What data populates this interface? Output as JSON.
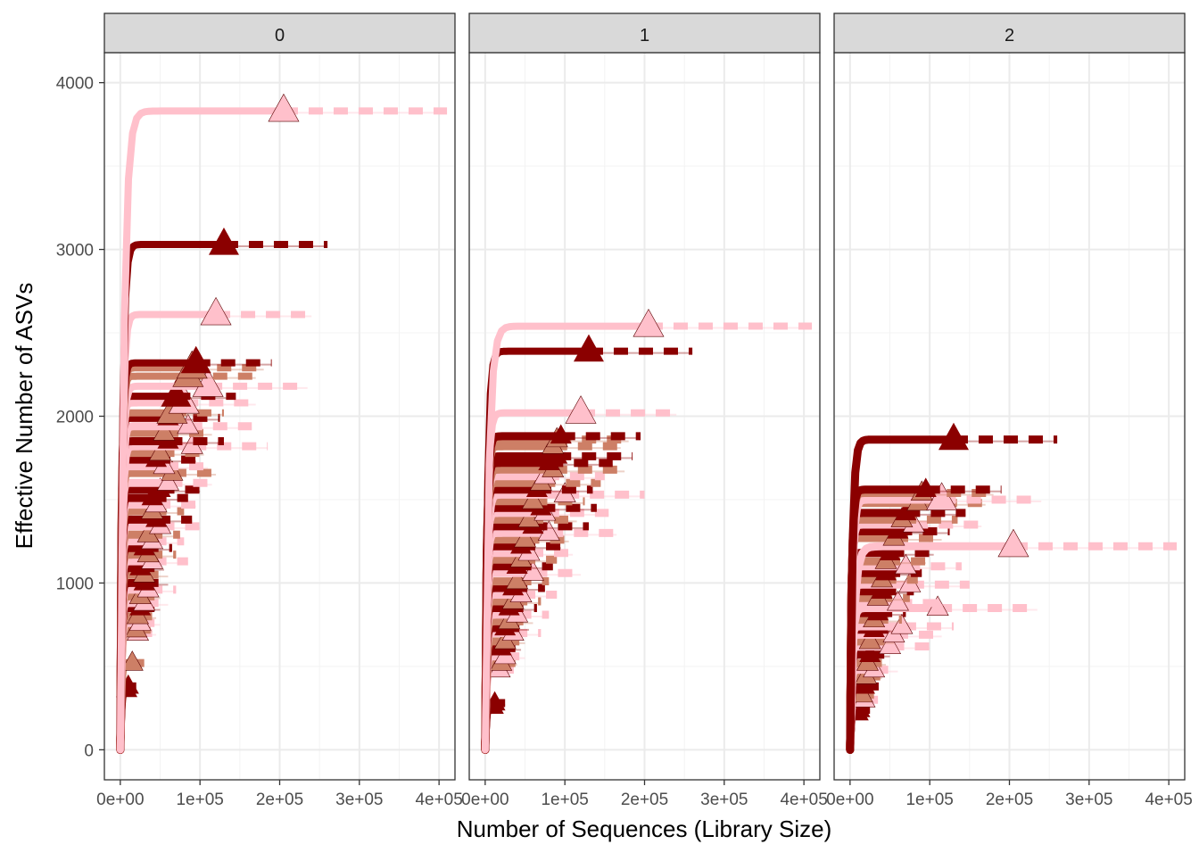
{
  "chart_data": {
    "type": "line",
    "subtype": "rarefaction-curves (faceted)",
    "xlabel": "Number of Sequences (Library Size)",
    "ylabel": "Effective Number of ASVs",
    "xlim": [
      -20000,
      420000
    ],
    "ylim": [
      -180,
      4180
    ],
    "x_ticks": [
      0,
      100000,
      200000,
      300000,
      400000
    ],
    "x_tick_labels": [
      "0e+00",
      "1e+05",
      "2e+05",
      "3e+05",
      "4e+05"
    ],
    "y_ticks": [
      0,
      1000,
      2000,
      3000,
      4000
    ],
    "y_tick_labels": [
      "0",
      "1000",
      "2000",
      "3000",
      "4000"
    ],
    "grid": true,
    "legend": "none",
    "colors": {
      "dark": "#8b0000",
      "medium": "#cd7f66",
      "light": "#ffc0cb",
      "strip_bg": "#d9d9d9",
      "grid": "#ebebeb",
      "axis_text": "#4d4d4d"
    },
    "facets": [
      {
        "label": "0",
        "series": [
          {
            "color": "light",
            "y": 3830,
            "lib": 205000,
            "ext": 410000
          },
          {
            "color": "dark",
            "y": 3030,
            "lib": 130000,
            "ext": 260000
          },
          {
            "color": "light",
            "y": 2610,
            "lib": 120000,
            "ext": 240000
          },
          {
            "color": "dark",
            "y": 2320,
            "lib": 95000,
            "ext": 190000
          },
          {
            "color": "medium",
            "y": 2290,
            "lib": 90000,
            "ext": 180000
          },
          {
            "color": "medium",
            "y": 2240,
            "lib": 85000,
            "ext": 170000
          },
          {
            "color": "light",
            "y": 2180,
            "lib": 110000,
            "ext": 235000
          },
          {
            "color": "dark",
            "y": 2120,
            "lib": 70000,
            "ext": 145000
          },
          {
            "color": "light",
            "y": 2080,
            "lib": 80000,
            "ext": 170000
          },
          {
            "color": "medium",
            "y": 2020,
            "lib": 65000,
            "ext": 130000
          },
          {
            "color": "dark",
            "y": 1990,
            "lib": 60000,
            "ext": 125000
          },
          {
            "color": "light",
            "y": 1940,
            "lib": 85000,
            "ext": 165000
          },
          {
            "color": "medium",
            "y": 1900,
            "lib": 55000,
            "ext": 115000
          },
          {
            "color": "dark",
            "y": 1850,
            "lib": 60000,
            "ext": 130000
          },
          {
            "color": "light",
            "y": 1820,
            "lib": 90000,
            "ext": 185000
          },
          {
            "color": "medium",
            "y": 1780,
            "lib": 50000,
            "ext": 105000
          },
          {
            "color": "dark",
            "y": 1740,
            "lib": 45000,
            "ext": 95000
          },
          {
            "color": "light",
            "y": 1700,
            "lib": 55000,
            "ext": 110000
          },
          {
            "color": "medium",
            "y": 1660,
            "lib": 65000,
            "ext": 120000
          },
          {
            "color": "light",
            "y": 1600,
            "lib": 60000,
            "ext": 115000
          },
          {
            "color": "dark",
            "y": 1560,
            "lib": 50000,
            "ext": 100000
          },
          {
            "color": "dark",
            "y": 1510,
            "lib": 40000,
            "ext": 85000
          },
          {
            "color": "light",
            "y": 1470,
            "lib": 45000,
            "ext": 95000
          },
          {
            "color": "medium",
            "y": 1430,
            "lib": 40000,
            "ext": 80000
          },
          {
            "color": "dark",
            "y": 1380,
            "lib": 45000,
            "ext": 90000
          },
          {
            "color": "light",
            "y": 1340,
            "lib": 50000,
            "ext": 100000
          },
          {
            "color": "medium",
            "y": 1290,
            "lib": 35000,
            "ext": 75000
          },
          {
            "color": "light",
            "y": 1250,
            "lib": 40000,
            "ext": 80000
          },
          {
            "color": "dark",
            "y": 1210,
            "lib": 30000,
            "ext": 65000
          },
          {
            "color": "medium",
            "y": 1170,
            "lib": 35000,
            "ext": 70000
          },
          {
            "color": "light",
            "y": 1130,
            "lib": 40000,
            "ext": 85000
          },
          {
            "color": "dark",
            "y": 1090,
            "lib": 25000,
            "ext": 55000
          },
          {
            "color": "medium",
            "y": 1050,
            "lib": 30000,
            "ext": 60000
          },
          {
            "color": "dark",
            "y": 1000,
            "lib": 30000,
            "ext": 60000
          },
          {
            "color": "light",
            "y": 960,
            "lib": 35000,
            "ext": 70000
          },
          {
            "color": "medium",
            "y": 920,
            "lib": 25000,
            "ext": 50000
          },
          {
            "color": "light",
            "y": 880,
            "lib": 30000,
            "ext": 60000
          },
          {
            "color": "dark",
            "y": 850,
            "lib": 25000,
            "ext": 50000
          },
          {
            "color": "medium",
            "y": 800,
            "lib": 22000,
            "ext": 45000
          },
          {
            "color": "light",
            "y": 760,
            "lib": 25000,
            "ext": 50000
          },
          {
            "color": "medium",
            "y": 720,
            "lib": 20000,
            "ext": 40000
          },
          {
            "color": "light",
            "y": 700,
            "lib": 22000,
            "ext": 45000
          },
          {
            "color": "medium",
            "y": 520,
            "lib": 15000,
            "ext": 30000
          },
          {
            "color": "dark",
            "y": 380,
            "lib": 10000,
            "ext": 20000
          },
          {
            "color": "dark",
            "y": 360,
            "lib": 8000,
            "ext": 18000
          }
        ]
      },
      {
        "label": "1",
        "series": [
          {
            "color": "light",
            "y": 2540,
            "lib": 205000,
            "ext": 410000
          },
          {
            "color": "dark",
            "y": 2390,
            "lib": 130000,
            "ext": 260000
          },
          {
            "color": "light",
            "y": 2020,
            "lib": 120000,
            "ext": 240000
          },
          {
            "color": "dark",
            "y": 1880,
            "lib": 95000,
            "ext": 195000
          },
          {
            "color": "medium",
            "y": 1860,
            "lib": 90000,
            "ext": 180000
          },
          {
            "color": "medium",
            "y": 1820,
            "lib": 85000,
            "ext": 170000
          },
          {
            "color": "dark",
            "y": 1760,
            "lib": 90000,
            "ext": 185000
          },
          {
            "color": "dark",
            "y": 1720,
            "lib": 80000,
            "ext": 160000
          },
          {
            "color": "medium",
            "y": 1680,
            "lib": 85000,
            "ext": 175000
          },
          {
            "color": "light",
            "y": 1640,
            "lib": 75000,
            "ext": 150000
          },
          {
            "color": "medium",
            "y": 1600,
            "lib": 70000,
            "ext": 145000
          },
          {
            "color": "dark",
            "y": 1560,
            "lib": 65000,
            "ext": 135000
          },
          {
            "color": "light",
            "y": 1530,
            "lib": 100000,
            "ext": 200000
          },
          {
            "color": "medium",
            "y": 1490,
            "lib": 60000,
            "ext": 125000
          },
          {
            "color": "dark",
            "y": 1450,
            "lib": 70000,
            "ext": 140000
          },
          {
            "color": "light",
            "y": 1420,
            "lib": 75000,
            "ext": 155000
          },
          {
            "color": "medium",
            "y": 1380,
            "lib": 55000,
            "ext": 115000
          },
          {
            "color": "dark",
            "y": 1340,
            "lib": 60000,
            "ext": 130000
          },
          {
            "color": "light",
            "y": 1300,
            "lib": 80000,
            "ext": 165000
          },
          {
            "color": "medium",
            "y": 1260,
            "lib": 50000,
            "ext": 105000
          },
          {
            "color": "dark",
            "y": 1220,
            "lib": 45000,
            "ext": 95000
          },
          {
            "color": "light",
            "y": 1180,
            "lib": 55000,
            "ext": 110000
          },
          {
            "color": "medium",
            "y": 1140,
            "lib": 45000,
            "ext": 90000
          },
          {
            "color": "dark",
            "y": 1100,
            "lib": 40000,
            "ext": 85000
          },
          {
            "color": "light",
            "y": 1060,
            "lib": 60000,
            "ext": 120000
          },
          {
            "color": "medium",
            "y": 1010,
            "lib": 40000,
            "ext": 80000
          },
          {
            "color": "dark",
            "y": 970,
            "lib": 35000,
            "ext": 75000
          },
          {
            "color": "light",
            "y": 930,
            "lib": 45000,
            "ext": 90000
          },
          {
            "color": "medium",
            "y": 890,
            "lib": 35000,
            "ext": 70000
          },
          {
            "color": "dark",
            "y": 850,
            "lib": 30000,
            "ext": 65000
          },
          {
            "color": "light",
            "y": 810,
            "lib": 40000,
            "ext": 80000
          },
          {
            "color": "medium",
            "y": 770,
            "lib": 30000,
            "ext": 60000
          },
          {
            "color": "dark",
            "y": 730,
            "lib": 25000,
            "ext": 55000
          },
          {
            "color": "light",
            "y": 700,
            "lib": 35000,
            "ext": 70000
          },
          {
            "color": "medium",
            "y": 650,
            "lib": 25000,
            "ext": 50000
          },
          {
            "color": "dark",
            "y": 610,
            "lib": 20000,
            "ext": 45000
          },
          {
            "color": "light",
            "y": 560,
            "lib": 25000,
            "ext": 50000
          },
          {
            "color": "medium",
            "y": 520,
            "lib": 20000,
            "ext": 40000
          },
          {
            "color": "light",
            "y": 480,
            "lib": 18000,
            "ext": 36000
          },
          {
            "color": "dark",
            "y": 280,
            "lib": 12000,
            "ext": 25000
          },
          {
            "color": "dark",
            "y": 260,
            "lib": 10000,
            "ext": 22000
          }
        ]
      },
      {
        "label": "2",
        "series": [
          {
            "color": "dark",
            "y": 1860,
            "lib": 130000,
            "ext": 260000
          },
          {
            "color": "dark",
            "y": 1560,
            "lib": 95000,
            "ext": 190000
          },
          {
            "color": "medium",
            "y": 1540,
            "lib": 90000,
            "ext": 180000
          },
          {
            "color": "light",
            "y": 1500,
            "lib": 115000,
            "ext": 240000
          },
          {
            "color": "medium",
            "y": 1480,
            "lib": 85000,
            "ext": 170000
          },
          {
            "color": "dark",
            "y": 1420,
            "lib": 70000,
            "ext": 145000
          },
          {
            "color": "medium",
            "y": 1380,
            "lib": 65000,
            "ext": 135000
          },
          {
            "color": "light",
            "y": 1350,
            "lib": 80000,
            "ext": 165000
          },
          {
            "color": "dark",
            "y": 1310,
            "lib": 60000,
            "ext": 125000
          },
          {
            "color": "medium",
            "y": 1270,
            "lib": 55000,
            "ext": 115000
          },
          {
            "color": "light",
            "y": 1220,
            "lib": 205000,
            "ext": 410000
          },
          {
            "color": "dark",
            "y": 1180,
            "lib": 50000,
            "ext": 105000
          },
          {
            "color": "medium",
            "y": 1130,
            "lib": 45000,
            "ext": 95000
          },
          {
            "color": "light",
            "y": 1100,
            "lib": 70000,
            "ext": 140000
          },
          {
            "color": "dark",
            "y": 1060,
            "lib": 45000,
            "ext": 90000
          },
          {
            "color": "medium",
            "y": 1020,
            "lib": 40000,
            "ext": 85000
          },
          {
            "color": "light",
            "y": 990,
            "lib": 75000,
            "ext": 150000
          },
          {
            "color": "dark",
            "y": 950,
            "lib": 40000,
            "ext": 80000
          },
          {
            "color": "medium",
            "y": 910,
            "lib": 35000,
            "ext": 75000
          },
          {
            "color": "light",
            "y": 880,
            "lib": 60000,
            "ext": 120000
          },
          {
            "color": "light",
            "y": 850,
            "lib": 110000,
            "ext": 235000
          },
          {
            "color": "dark",
            "y": 820,
            "lib": 35000,
            "ext": 70000
          },
          {
            "color": "medium",
            "y": 780,
            "lib": 30000,
            "ext": 65000
          },
          {
            "color": "light",
            "y": 740,
            "lib": 65000,
            "ext": 130000
          },
          {
            "color": "dark",
            "y": 720,
            "lib": 30000,
            "ext": 60000
          },
          {
            "color": "light",
            "y": 690,
            "lib": 55000,
            "ext": 115000
          },
          {
            "color": "medium",
            "y": 650,
            "lib": 25000,
            "ext": 55000
          },
          {
            "color": "light",
            "y": 620,
            "lib": 50000,
            "ext": 100000
          },
          {
            "color": "dark",
            "y": 570,
            "lib": 25000,
            "ext": 50000
          },
          {
            "color": "medium",
            "y": 520,
            "lib": 22000,
            "ext": 45000
          },
          {
            "color": "light",
            "y": 480,
            "lib": 30000,
            "ext": 60000
          },
          {
            "color": "medium",
            "y": 440,
            "lib": 20000,
            "ext": 40000
          },
          {
            "color": "dark",
            "y": 380,
            "lib": 18000,
            "ext": 36000
          },
          {
            "color": "medium",
            "y": 330,
            "lib": 15000,
            "ext": 30000
          },
          {
            "color": "light",
            "y": 300,
            "lib": 18000,
            "ext": 35000
          },
          {
            "color": "dark",
            "y": 240,
            "lib": 12000,
            "ext": 25000
          },
          {
            "color": "dark",
            "y": 220,
            "lib": 10000,
            "ext": 20000
          }
        ]
      }
    ]
  }
}
